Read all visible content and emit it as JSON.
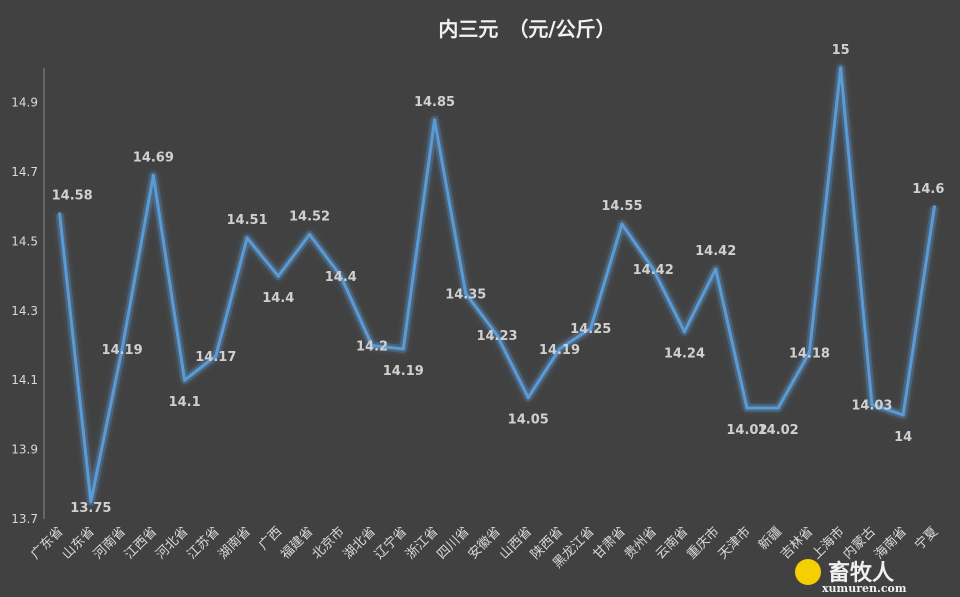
{
  "chart_data": {
    "type": "line",
    "title": "内三元　（元/公斤）",
    "categories": [
      "广东省",
      "山东省",
      "河南省",
      "江西省",
      "河北省",
      "江苏省",
      "湖南省",
      "广西",
      "福建省",
      "北京市",
      "湖北省",
      "辽宁省",
      "浙江省",
      "四川省",
      "安徽省",
      "山西省",
      "陕西省",
      "黑龙江省",
      "甘肃省",
      "贵州省",
      "云南省",
      "重庆市",
      "天津市",
      "新疆",
      "吉林省",
      "上海市",
      "内蒙古",
      "海南省",
      "宁夏"
    ],
    "values": [
      14.58,
      13.75,
      14.19,
      14.69,
      14.1,
      14.17,
      14.51,
      14.4,
      14.52,
      14.4,
      14.2,
      14.19,
      14.85,
      14.35,
      14.23,
      14.05,
      14.19,
      14.25,
      14.55,
      14.42,
      14.24,
      14.42,
      14.02,
      14.02,
      14.18,
      15,
      14.03,
      14.0,
      14.6
    ],
    "data_labels": [
      "14.58",
      "13.75",
      "14.19",
      "14.69",
      "14.1",
      "14.17",
      "14.51",
      "14.4",
      "14.52",
      "14.4",
      "14.2",
      "14.19",
      "14.85",
      "14.35",
      "14.23",
      "14.05",
      "14.19",
      "14.25",
      "14.55",
      "14.42",
      "14.24",
      "14.42",
      "14.02",
      "14.02",
      "14.18",
      "15",
      "14.03",
      "14",
      "14.6"
    ],
    "ylim": [
      13.7,
      15.0
    ],
    "yticks": [
      "13.7",
      "13.9",
      "14.1",
      "14.3",
      "14.5",
      "14.7",
      "14.9"
    ],
    "grid": false,
    "legend": "none",
    "line_color": "#5b9bd5",
    "xlabel": "",
    "ylabel": ""
  },
  "watermark": {
    "text": "畜牧人",
    "url": "xumuren.com"
  }
}
